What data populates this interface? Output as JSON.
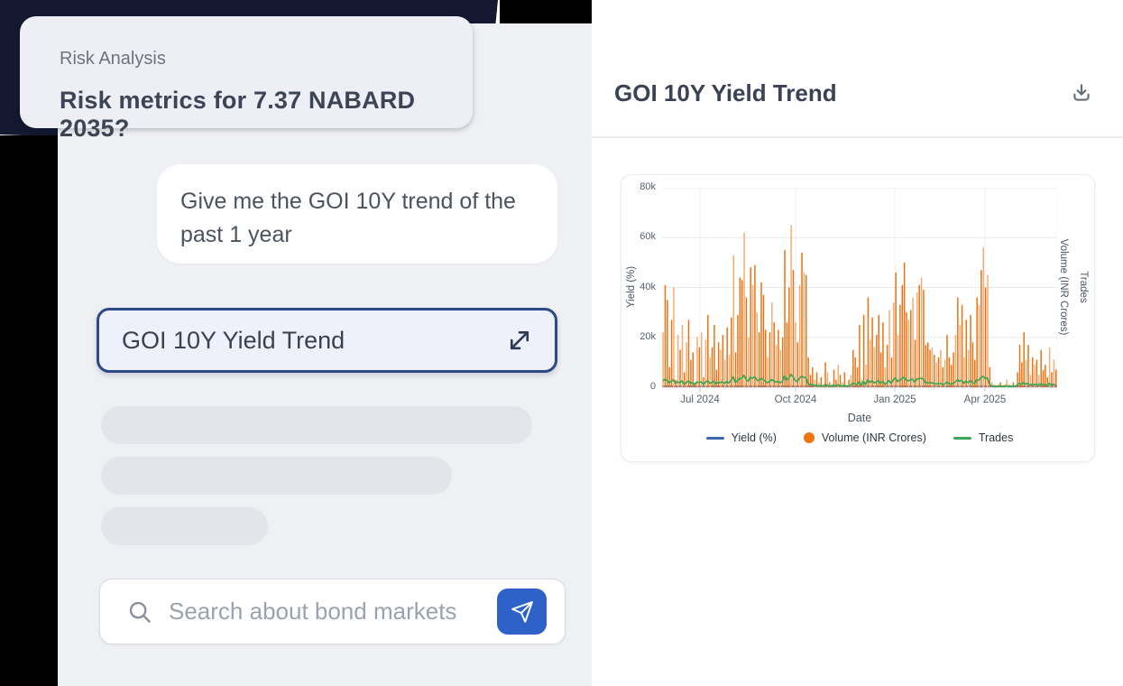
{
  "prompt_card": {
    "eyebrow": "Risk Analysis",
    "question": "Risk metrics for 7.37 NABARD 2035?"
  },
  "chat": {
    "user_message": "Give me the GOI 10Y trend of the past 1 year",
    "chart_chip_label": "GOI 10Y Yield Trend",
    "search_placeholder": "Search about bond markets"
  },
  "panel": {
    "title": "GOI 10Y Yield Trend"
  },
  "icons": {
    "expand": "expand-diagonal-arrows",
    "download": "download-tray-arrow",
    "search": "magnifier",
    "send": "paper-plane"
  },
  "colors": {
    "accent_blue": "#2f62c8",
    "chip_border": "#2b4a86",
    "volume_orange": "#ee7211",
    "volume_orange_light": "#f6ac74",
    "trades_green": "#3aa854",
    "yield_blue": "#3a68b2",
    "ink": "#141831"
  },
  "chart_data": {
    "type": "bar",
    "title": "GOI 10Y Yield Trend",
    "xlabel": "Date",
    "ylabel_left": "Yield (%)",
    "ylabel_right": [
      "Volume (INR Crores)",
      "Trades"
    ],
    "x_ticks": [
      "Jul 2024",
      "Oct 2024",
      "Jan 2025",
      "Apr 2025"
    ],
    "y_ticks": [
      "0",
      "20k",
      "40k",
      "60k",
      "80k"
    ],
    "ylim": [
      0,
      80000
    ],
    "x_range_shown": [
      "Jun 2024",
      "Jun 2025"
    ],
    "grid": true,
    "legend_position": "bottom",
    "legend": [
      {
        "name": "Yield (%)",
        "swatch": "line",
        "color": "#3a68b2"
      },
      {
        "name": "Volume (INR Crores)",
        "swatch": "dot",
        "color": "#f1730e"
      },
      {
        "name": "Trades",
        "swatch": "line",
        "color": "#3aa854"
      }
    ],
    "series": [
      {
        "name": "Yield (%)",
        "type": "line",
        "note": "renders flat at the 0 baseline on the 0-80k axis",
        "flat_value_k": 0.4,
        "color": "#3a68b2"
      },
      {
        "name": "Volume (INR Crores)",
        "type": "bar",
        "unit": "thousand INR crores",
        "color": "#ee7211",
        "values_k": [
          22,
          41,
          35,
          8,
          27,
          40,
          3,
          21,
          15,
          25,
          6,
          18,
          27,
          11,
          14,
          2,
          20,
          16,
          22,
          4,
          19,
          29,
          12,
          16,
          25,
          7,
          18,
          15,
          21,
          11,
          24,
          13,
          28,
          53,
          14,
          29,
          44,
          43,
          62,
          36,
          20,
          48,
          41,
          49,
          30,
          22,
          42,
          37,
          23,
          12,
          22,
          34,
          26,
          17,
          23,
          15,
          20,
          55,
          26,
          40,
          65,
          47,
          26,
          18,
          41,
          54,
          46,
          45,
          12,
          5,
          8,
          3,
          6,
          2,
          4,
          1,
          10,
          6,
          2,
          1,
          7,
          3,
          9,
          5,
          2,
          6,
          1,
          3,
          5,
          15,
          12,
          8,
          25,
          3,
          29,
          9,
          36,
          19,
          28,
          16,
          21,
          29,
          14,
          26,
          8,
          17,
          31,
          12,
          34,
          46,
          21,
          33,
          41,
          50,
          30,
          27,
          31,
          36,
          19,
          38,
          41,
          44,
          39,
          17,
          18,
          15,
          16,
          13,
          10,
          12,
          15,
          8,
          11,
          21,
          12,
          9,
          14,
          21,
          36,
          25,
          33,
          12,
          27,
          15,
          29,
          18,
          11,
          36,
          33,
          47,
          56,
          40,
          45,
          8,
          2,
          1,
          0.5,
          1,
          2,
          0.5,
          1,
          3,
          1,
          0.5,
          2,
          1,
          6,
          17,
          10,
          22,
          11,
          17,
          5,
          12,
          9,
          11,
          5,
          15,
          7,
          9,
          4,
          16,
          6,
          11,
          7
        ]
      },
      {
        "name": "Trades",
        "type": "line",
        "unit": "thousand trades",
        "color": "#3aa854",
        "values_k": [
          2.5,
          3.2,
          2.8,
          1.8,
          2.4,
          3.0,
          1.5,
          2.2,
          1.8,
          2.6,
          1.2,
          1.9,
          2.5,
          1.6,
          1.8,
          1.0,
          2.1,
          1.8,
          2.2,
          1.2,
          2.0,
          2.6,
          1.6,
          1.9,
          2.4,
          1.3,
          2.0,
          1.8,
          2.2,
          1.5,
          2.3,
          1.7,
          2.8,
          4.2,
          2.0,
          2.6,
          3.6,
          3.4,
          4.8,
          3.2,
          2.4,
          4.0,
          3.6,
          4.2,
          3.0,
          2.6,
          3.6,
          3.2,
          2.4,
          1.8,
          2.3,
          3.0,
          2.6,
          2.0,
          2.4,
          1.8,
          2.2,
          4.6,
          2.8,
          3.6,
          5.2,
          4.2,
          2.8,
          2.2,
          3.6,
          4.4,
          4.0,
          3.8,
          1.6,
          0.9,
          1.2,
          0.6,
          0.9,
          0.5,
          0.7,
          0.3,
          1.1,
          0.8,
          0.4,
          0.3,
          0.9,
          0.5,
          1.0,
          0.7,
          0.4,
          0.8,
          0.3,
          0.5,
          0.8,
          1.6,
          1.4,
          1.0,
          2.2,
          0.6,
          2.4,
          1.1,
          3.0,
          1.9,
          2.6,
          1.7,
          2.1,
          2.6,
          1.6,
          2.4,
          1.1,
          1.8,
          2.7,
          1.5,
          3.0,
          3.8,
          2.2,
          2.9,
          3.4,
          4.0,
          2.8,
          2.6,
          2.9,
          3.2,
          2.0,
          3.3,
          3.4,
          3.6,
          3.3,
          1.8,
          1.9,
          1.7,
          1.8,
          1.5,
          1.3,
          1.4,
          1.6,
          1.1,
          1.3,
          2.1,
          1.5,
          1.2,
          1.6,
          2.1,
          3.0,
          2.4,
          2.8,
          1.5,
          2.5,
          1.8,
          2.7,
          1.9,
          1.4,
          3.0,
          2.8,
          3.8,
          4.4,
          3.4,
          3.7,
          1.2,
          0.5,
          0.3,
          0.2,
          0.3,
          0.5,
          0.2,
          0.3,
          0.6,
          0.3,
          0.2,
          0.4,
          0.3,
          0.9,
          1.6,
          1.1,
          1.9,
          1.2,
          1.6,
          0.8,
          1.3,
          1.0,
          1.2,
          0.8,
          1.5,
          0.9,
          1.1,
          0.7,
          1.6,
          0.9,
          1.2,
          0.9
        ]
      }
    ]
  }
}
